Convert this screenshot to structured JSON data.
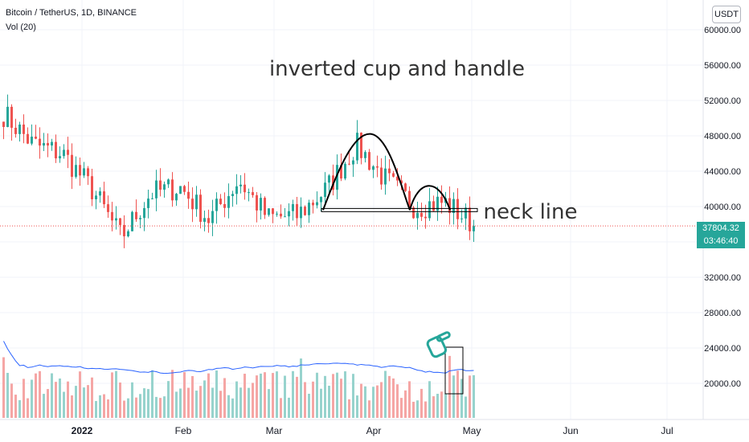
{
  "header": {
    "symbol": "Bitcoin / TetherUS, 1D, BINANCE",
    "volume_label": "Vol (20)",
    "currency": "USDT"
  },
  "last_price": {
    "value": "37804.32",
    "countdown": "03:46:40"
  },
  "annotations": {
    "title": "inverted cup and handle",
    "neck_label": "neck line"
  },
  "colors": {
    "up": "#26a69a",
    "down": "#ef5350",
    "vol_up": "#97d3cd",
    "vol_down": "#f5a6a5",
    "ma": "#2962ff",
    "last_price": "#26a69a",
    "grid": "#f0f3fa"
  },
  "chart_data": {
    "type": "candlestick",
    "price_axis": {
      "ticks": [
        "60000.00",
        "56000.00",
        "52000.00",
        "48000.00",
        "44000.00",
        "40000.00",
        "36000.00",
        "32000.00",
        "28000.00",
        "24000.00",
        "20000.00"
      ],
      "tick_values": [
        60000,
        56000,
        52000,
        48000,
        44000,
        40000,
        36000,
        32000,
        28000,
        24000,
        20000
      ]
    },
    "time_axis": {
      "labels": [
        "2022",
        "Feb",
        "Mar",
        "Apr",
        "May",
        "Jun",
        "Jul"
      ]
    },
    "weekly_closes": [
      {
        "week": 1,
        "close": 50500
      },
      {
        "week": 2,
        "close": 47000
      },
      {
        "week": 3,
        "close": 46000
      },
      {
        "week": 4,
        "close": 42000
      },
      {
        "week": 5,
        "close": 36500
      },
      {
        "week": 6,
        "close": 41500
      },
      {
        "week": 7,
        "close": 42200
      },
      {
        "week": 8,
        "close": 38500
      },
      {
        "week": 9,
        "close": 43000
      },
      {
        "week": 10,
        "close": 38700
      },
      {
        "week": 11,
        "close": 39000
      },
      {
        "week": 12,
        "close": 42000
      },
      {
        "week": 13,
        "close": 47000
      },
      {
        "week": 14,
        "close": 43000
      },
      {
        "week": 15,
        "close": 40000
      },
      {
        "week": 16,
        "close": 40500
      },
      {
        "week": 17,
        "close": 38000
      }
    ],
    "neck_line": 39600,
    "last_price": 37804.32,
    "volume_ma_label": "Vol (20)"
  }
}
